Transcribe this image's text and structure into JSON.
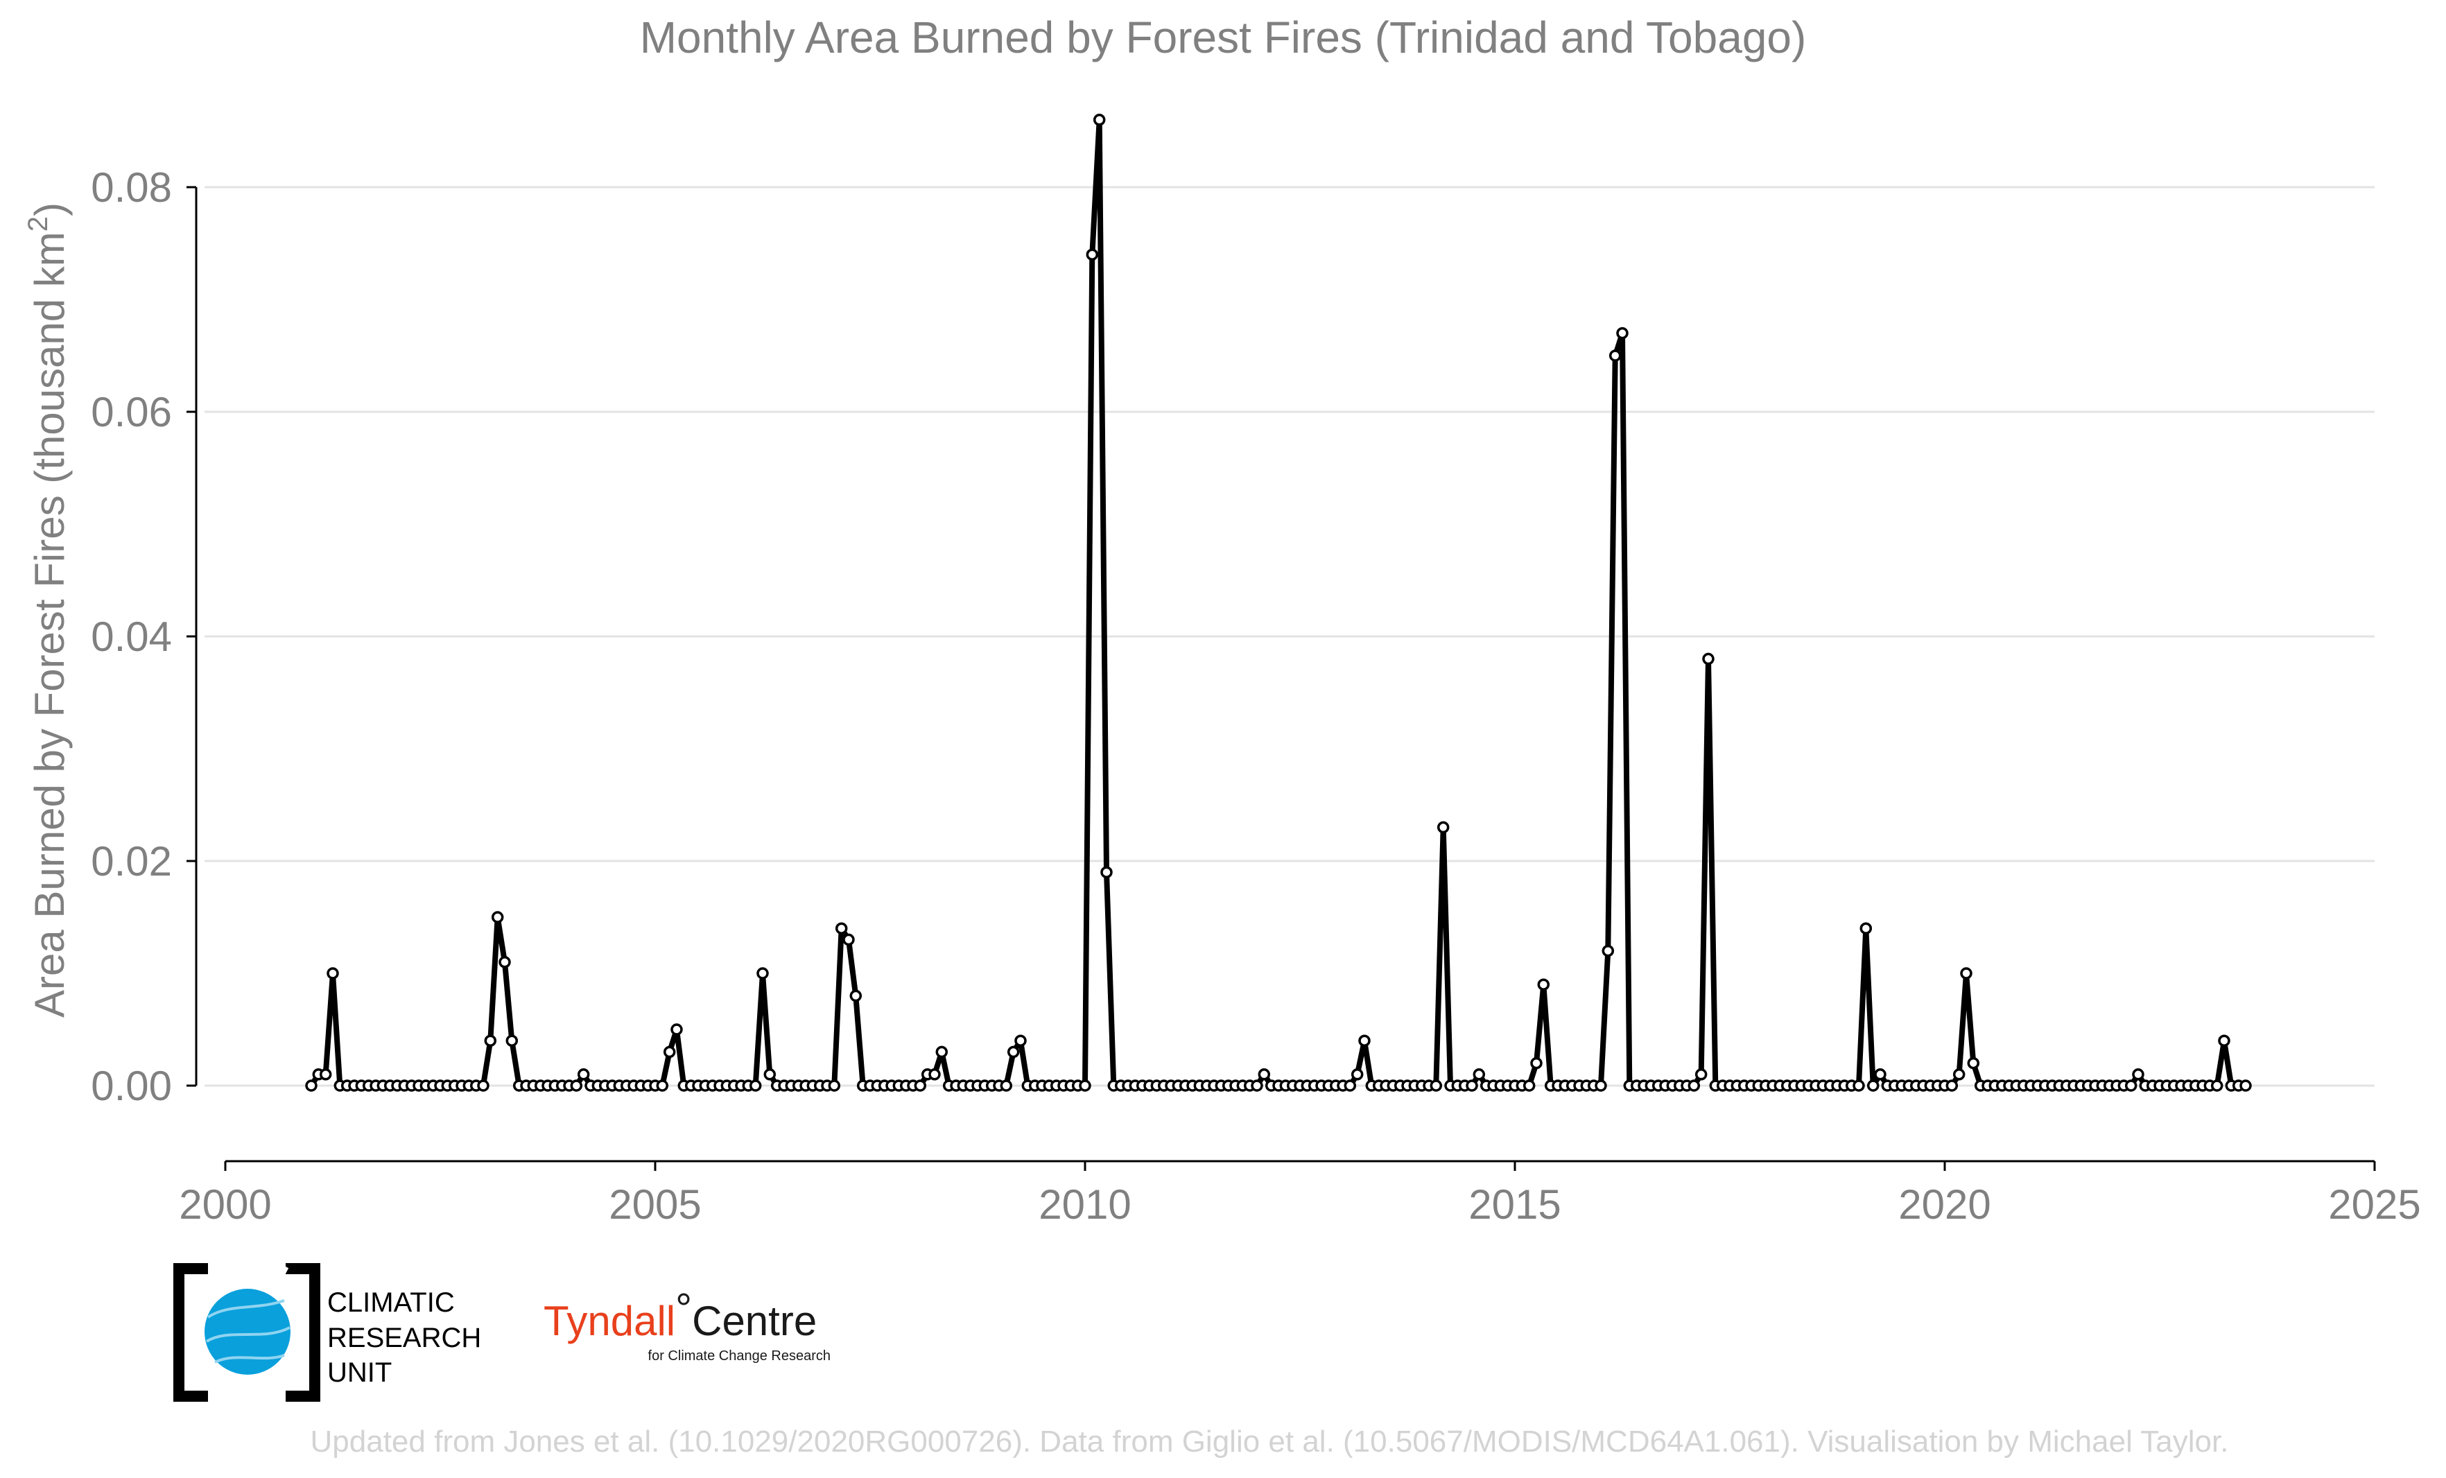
{
  "chart_data": {
    "type": "line",
    "title": "Monthly Area Burned by Forest Fires (Trinidad and Tobago)",
    "xlabel": "",
    "ylabel": "Area Burned by Forest Fires (thousand km",
    "ylabel_sup": "2",
    "ylabel_close": ")",
    "xlim": [
      2000,
      2025
    ],
    "ylim": [
      -0.007,
      0.092
    ],
    "x_ticks": [
      "2000",
      "2005",
      "2010",
      "2015",
      "2020",
      "2025"
    ],
    "y_ticks": [
      "0.00",
      "0.02",
      "0.04",
      "0.06",
      "0.08"
    ],
    "grid": true,
    "line_color": "#000000",
    "marker_fill": "#ffffff",
    "start_year": 2001,
    "start_month": 1,
    "series": [
      {
        "values": [
          0,
          0.001,
          0.001,
          0.01,
          0,
          0,
          0,
          0,
          0,
          0,
          0,
          0,
          0,
          0,
          0,
          0,
          0,
          0,
          0,
          0,
          0,
          0,
          0,
          0,
          0,
          0.004,
          0.015,
          0.011,
          0.004,
          0,
          0,
          0,
          0,
          0,
          0,
          0,
          0,
          0,
          0.001,
          0,
          0,
          0,
          0,
          0,
          0,
          0,
          0,
          0,
          0,
          0,
          0.003,
          0.005,
          0,
          0,
          0,
          0,
          0,
          0,
          0,
          0,
          0,
          0,
          0,
          0.01,
          0.001,
          0,
          0,
          0,
          0,
          0,
          0,
          0,
          0,
          0,
          0.014,
          0.013,
          0.008,
          0,
          0,
          0,
          0,
          0,
          0,
          0,
          0,
          0,
          0.001,
          0.001,
          0.003,
          0,
          0,
          0,
          0,
          0,
          0,
          0,
          0,
          0,
          0.003,
          0.004,
          0,
          0,
          0,
          0,
          0,
          0,
          0,
          0,
          0,
          0.074,
          0.086,
          0.019,
          0,
          0,
          0,
          0,
          0,
          0,
          0,
          0,
          0,
          0,
          0,
          0,
          0,
          0,
          0,
          0,
          0,
          0,
          0,
          0,
          0,
          0.001,
          0,
          0,
          0,
          0,
          0,
          0,
          0,
          0,
          0,
          0,
          0,
          0,
          0.001,
          0.004,
          0,
          0,
          0,
          0,
          0,
          0,
          0,
          0,
          0,
          0,
          0.023,
          0,
          0,
          0,
          0,
          0.001,
          0,
          0,
          0,
          0,
          0,
          0,
          0,
          0.002,
          0.009,
          0,
          0,
          0,
          0,
          0,
          0,
          0,
          0,
          0.012,
          0.065,
          0.067,
          0,
          0,
          0,
          0,
          0,
          0,
          0,
          0,
          0,
          0,
          0.001,
          0.038,
          0,
          0,
          0,
          0,
          0,
          0,
          0,
          0,
          0,
          0,
          0,
          0,
          0,
          0,
          0,
          0,
          0,
          0,
          0,
          0,
          0,
          0.014,
          0,
          0.001,
          0,
          0,
          0,
          0,
          0,
          0,
          0,
          0,
          0,
          0,
          0.001,
          0.01,
          0.002,
          0,
          0,
          0,
          0,
          0,
          0,
          0,
          0,
          0,
          0,
          0,
          0,
          0,
          0,
          0,
          0,
          0,
          0,
          0,
          0,
          0,
          0,
          0.001,
          0,
          0,
          0,
          0,
          0,
          0,
          0,
          0,
          0,
          0,
          0,
          0.004,
          0,
          0,
          0
        ]
      }
    ]
  },
  "logos": {
    "cru_line1": "CLIMATIC",
    "cru_line2": "RESEARCH",
    "cru_line3": "UNIT",
    "tyndall_main": "Tyndall",
    "tyndall_degree": "°",
    "tyndall_centre": "Centre",
    "tyndall_sub": "for Climate Change Research",
    "cru_globe_color": "#0aa0dc",
    "tyndall_color": "#e8401c"
  },
  "credit": "Updated from Jones et al. (10.1029/2020RG000726). Data from Giglio et al. (10.5067/MODIS/MCD64A1.061). Visualisation by Michael Taylor."
}
